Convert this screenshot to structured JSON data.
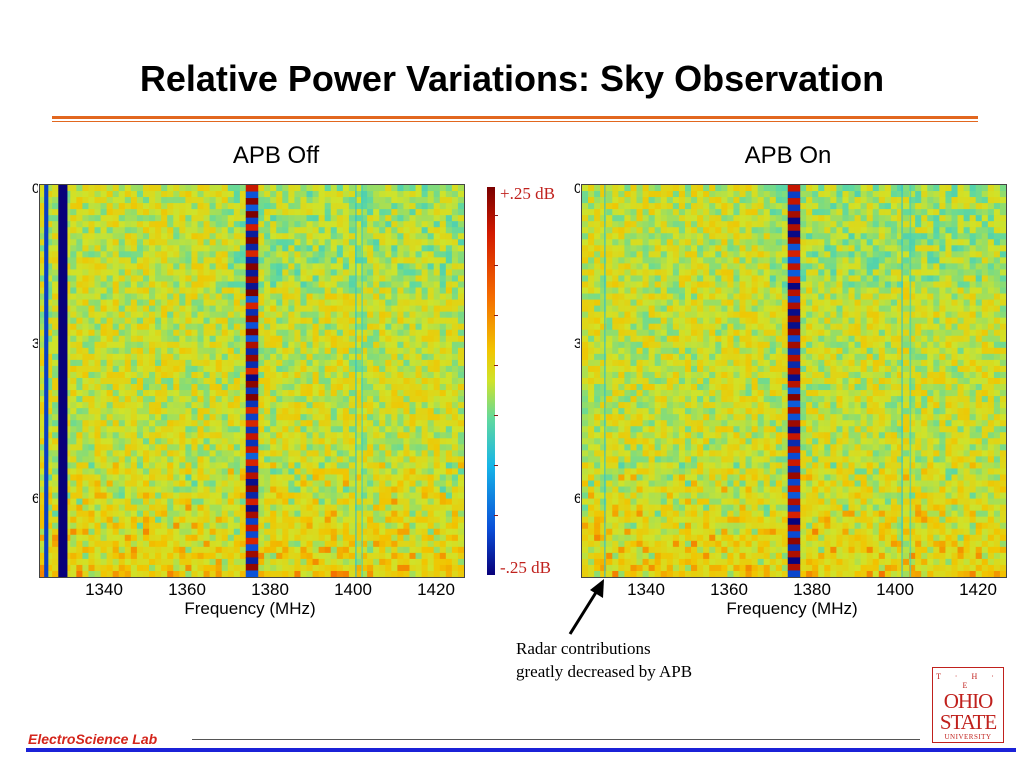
{
  "slide": {
    "title": "Relative Power Variations: Sky Observation",
    "footer_brand": "ElectroScience Lab",
    "annotation_line1": "Radar contributions",
    "annotation_line2": "greatly decreased by APB",
    "logo": {
      "the": "T · H · E",
      "ohio": "OHIO",
      "state": "STATE",
      "university": "UNIVERSITY"
    }
  },
  "colorbar": {
    "max_label": "+.25 dB",
    "min_label": "-.25 dB",
    "max_db": 0.25,
    "min_db": -0.25
  },
  "colors": {
    "accent_orange": "#e2671f",
    "footer_blue": "#1b22d8",
    "brand_red": "#d4251c",
    "colormap": [
      "#08007a",
      "#0a4fd8",
      "#16b4e8",
      "#5fd8a0",
      "#cfe32a",
      "#f2c400",
      "#f46a00",
      "#d21a00",
      "#7a0000"
    ]
  },
  "chart_data": [
    {
      "type": "heatmap",
      "title": "APB Off",
      "xlabel": "Frequency (MHz)",
      "ylabel": "",
      "xlim": [
        1324,
        1426
      ],
      "xticks": [
        1340,
        1360,
        1380,
        1400,
        1420
      ],
      "colorbar_range_db": [
        -0.25,
        0.25
      ],
      "features": [
        {
          "kind": "band",
          "freq_mhz": 1329.5,
          "width_mhz": 2.2,
          "value_db": -0.25
        },
        {
          "kind": "band",
          "freq_mhz": 1325.5,
          "width_mhz": 1.0,
          "value_db": -0.2
        },
        {
          "kind": "striped-band",
          "freq_mhz": 1375,
          "width_mhz": 3.0,
          "stripe_db": [
            0.25,
            -0.25
          ]
        },
        {
          "kind": "line",
          "freq_mhz": 1400,
          "value_db": -0.1
        },
        {
          "kind": "line",
          "freq_mhz": 1401.5,
          "value_db": -0.08
        }
      ]
    },
    {
      "type": "heatmap",
      "title": "APB On",
      "xlabel": "Frequency (MHz)",
      "ylabel": "",
      "xlim": [
        1324,
        1426
      ],
      "xticks": [
        1340,
        1360,
        1380,
        1400,
        1420
      ],
      "colorbar_range_db": [
        -0.25,
        0.25
      ],
      "features": [
        {
          "kind": "line",
          "freq_mhz": 1329.5,
          "value_db": -0.1
        },
        {
          "kind": "striped-band",
          "freq_mhz": 1375,
          "width_mhz": 3.0,
          "stripe_db": [
            0.25,
            -0.25
          ]
        },
        {
          "kind": "line",
          "freq_mhz": 1401,
          "value_db": -0.1
        },
        {
          "kind": "line",
          "freq_mhz": 1403,
          "value_db": -0.08
        }
      ]
    }
  ]
}
